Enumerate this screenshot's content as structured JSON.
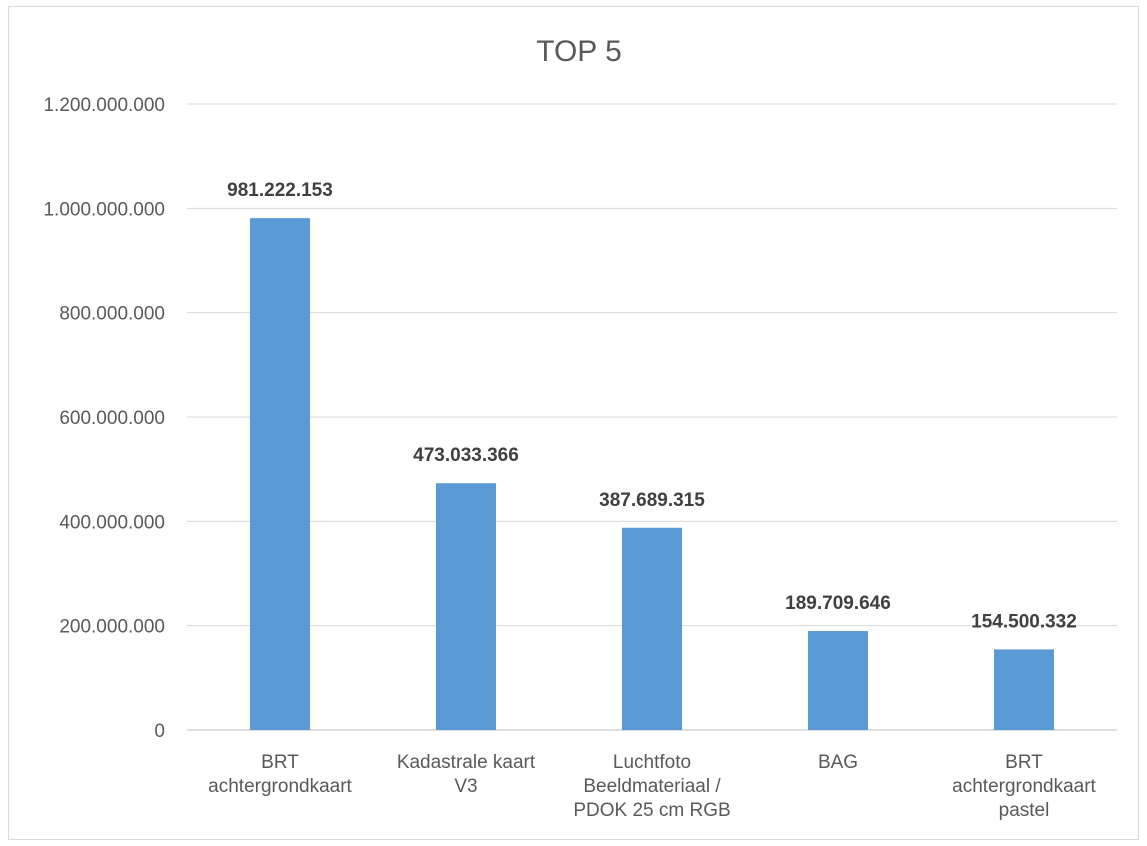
{
  "chart_data": {
    "type": "bar",
    "title": "TOP 5",
    "xlabel": "",
    "ylabel": "",
    "categories": [
      [
        "BRT",
        "achtergrondkaart"
      ],
      [
        "Kadastrale kaart",
        "V3"
      ],
      [
        "Luchtfoto",
        "Beeldmateriaal /",
        "PDOK 25 cm RGB"
      ],
      [
        "BAG"
      ],
      [
        "BRT",
        "achtergrondkaart",
        "pastel"
      ]
    ],
    "values": [
      981222153,
      473033366,
      387689315,
      189709646,
      154500332
    ],
    "data_labels": [
      "981.222.153",
      "473.033.366",
      "387.689.315",
      "189.709.646",
      "154.500.332"
    ],
    "ylim": [
      0,
      1200000000
    ],
    "yticks": [
      0,
      200000000,
      400000000,
      600000000,
      800000000,
      1000000000,
      1200000000
    ],
    "ytick_labels": [
      "0",
      "200.000.000",
      "400.000.000",
      "600.000.000",
      "800.000.000",
      "1.000.000.000",
      "1.200.000.000"
    ],
    "grid": true,
    "legend": "none",
    "colors": {
      "bar": "#5b9bd5",
      "grid": "#d9d9d9",
      "text": "#595959"
    }
  }
}
